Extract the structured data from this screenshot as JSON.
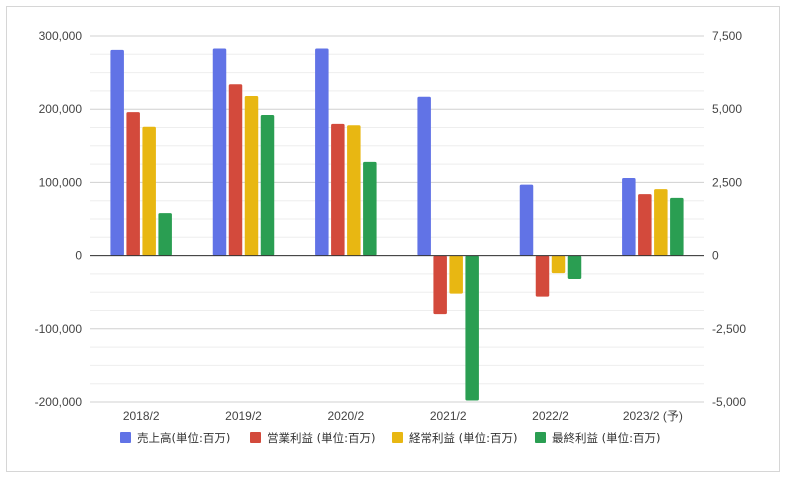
{
  "chart_data": {
    "type": "bar",
    "categories": [
      "2018/2",
      "2019/2",
      "2020/2",
      "2021/2",
      "2022/2",
      "2023/2 (予)"
    ],
    "series": [
      {
        "name": "売上高(単位:百万)",
        "color": "#6173e6",
        "axis": "left",
        "values": [
          281000,
          283000,
          283000,
          217000,
          97000,
          106000
        ]
      },
      {
        "name": "営業利益 (単位:百万)",
        "color": "#d34a3c",
        "axis": "right",
        "values": [
          4900,
          5850,
          4500,
          -2000,
          -1400,
          2100
        ]
      },
      {
        "name": "経常利益 (単位:百万)",
        "color": "#e8b712",
        "axis": "right",
        "values": [
          4400,
          5450,
          4450,
          -1300,
          -600,
          2270
        ]
      },
      {
        "name": "最終利益 (単位:百万)",
        "color": "#2a9e52",
        "axis": "right",
        "values": [
          1450,
          4800,
          3200,
          -4950,
          -800,
          1970
        ]
      }
    ],
    "y_left": {
      "min": -200000,
      "max": 300000,
      "ticks": [
        300000,
        200000,
        100000,
        0,
        -100000,
        -200000
      ],
      "tick_labels": [
        "300,000",
        "200,000",
        "100,000",
        "0",
        "-100,000",
        "-200,000"
      ]
    },
    "y_right": {
      "min": -5000,
      "max": 7500,
      "ticks": [
        7500,
        5000,
        2500,
        0,
        -2500,
        -5000
      ],
      "tick_labels": [
        "7,500",
        "5,000",
        "2,500",
        "0",
        "-2,500",
        "-5,000"
      ]
    },
    "minor_gridlines": true,
    "legend_position": "bottom"
  }
}
